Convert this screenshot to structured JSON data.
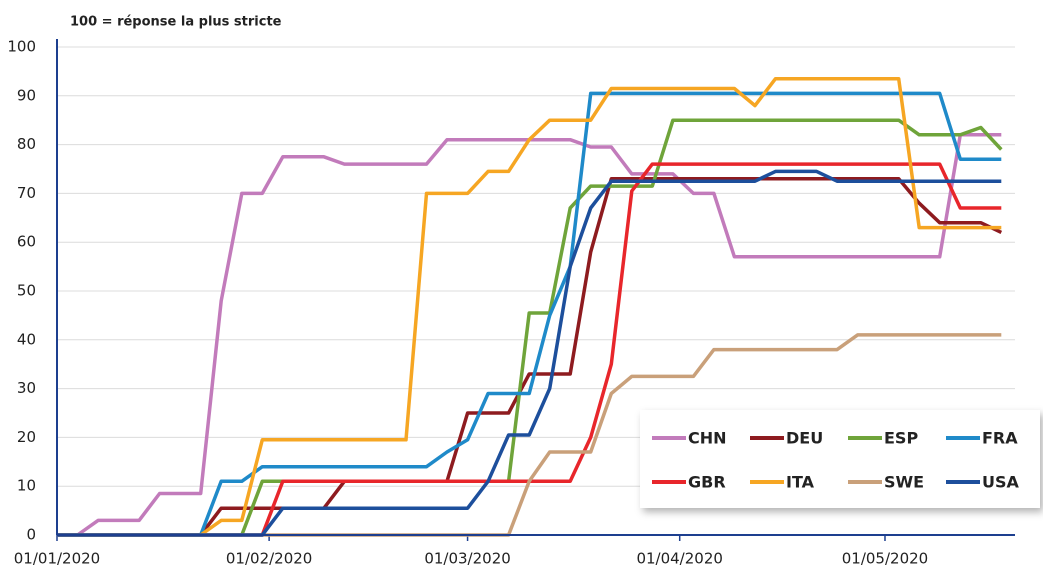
{
  "chart_data": {
    "type": "line",
    "title": "100 = réponse la plus stricte",
    "x": [
      "2020-01-01",
      "2020-01-04",
      "2020-01-07",
      "2020-01-10",
      "2020-01-13",
      "2020-01-16",
      "2020-01-19",
      "2020-01-22",
      "2020-01-25",
      "2020-01-28",
      "2020-01-31",
      "2020-02-03",
      "2020-02-06",
      "2020-02-09",
      "2020-02-12",
      "2020-02-15",
      "2020-02-18",
      "2020-02-21",
      "2020-02-24",
      "2020-02-27",
      "2020-03-01",
      "2020-03-04",
      "2020-03-07",
      "2020-03-10",
      "2020-03-13",
      "2020-03-16",
      "2020-03-19",
      "2020-03-22",
      "2020-03-25",
      "2020-03-28",
      "2020-03-31",
      "2020-04-03",
      "2020-04-06",
      "2020-04-09",
      "2020-04-12",
      "2020-04-15",
      "2020-04-18",
      "2020-04-21",
      "2020-04-24",
      "2020-04-27",
      "2020-04-30",
      "2020-05-03",
      "2020-05-06",
      "2020-05-09",
      "2020-05-12",
      "2020-05-15",
      "2020-05-18"
    ],
    "series": [
      {
        "name": "CHN",
        "color": "#c27bbb",
        "values": [
          0,
          0,
          3,
          3,
          3,
          8.5,
          8.5,
          8.5,
          48,
          70,
          70,
          77.5,
          77.5,
          77.5,
          76,
          76,
          76,
          76,
          76,
          81,
          81,
          81,
          81,
          81,
          81,
          81,
          79.5,
          79.5,
          74,
          74,
          74,
          70,
          70,
          57,
          57,
          57,
          57,
          57,
          57,
          57,
          57,
          57,
          57,
          57,
          82,
          82,
          82
        ]
      },
      {
        "name": "DEU",
        "color": "#8e1b1f",
        "values": [
          0,
          0,
          0,
          0,
          0,
          0,
          0,
          0,
          5.5,
          5.5,
          5.5,
          5.5,
          5.5,
          5.5,
          11,
          11,
          11,
          11,
          11,
          11,
          25,
          25,
          25,
          33,
          33,
          33,
          58,
          73,
          73,
          73,
          73,
          73,
          73,
          73,
          73,
          73,
          73,
          73,
          73,
          73,
          73,
          73,
          68,
          64,
          64,
          64,
          62
        ]
      },
      {
        "name": "ESP",
        "color": "#6fa43a",
        "values": [
          0,
          0,
          0,
          0,
          0,
          0,
          0,
          0,
          0,
          0,
          11,
          11,
          11,
          11,
          11,
          11,
          11,
          11,
          11,
          11,
          11,
          11,
          11,
          45.5,
          45.5,
          67,
          71.5,
          71.5,
          71.5,
          71.5,
          85,
          85,
          85,
          85,
          85,
          85,
          85,
          85,
          85,
          85,
          85,
          85,
          82,
          82,
          82,
          83.5,
          79
        ]
      },
      {
        "name": "FRA",
        "color": "#1f8ac9",
        "values": [
          0,
          0,
          0,
          0,
          0,
          0,
          0,
          0,
          11,
          11,
          14,
          14,
          14,
          14,
          14,
          14,
          14,
          14,
          14,
          17,
          19.5,
          29,
          29,
          29,
          45,
          55,
          90.5,
          90.5,
          90.5,
          90.5,
          90.5,
          90.5,
          90.5,
          90.5,
          90.5,
          90.5,
          90.5,
          90.5,
          90.5,
          90.5,
          90.5,
          90.5,
          90.5,
          90.5,
          77,
          77,
          77
        ]
      },
      {
        "name": "GBR",
        "color": "#e8262b",
        "values": [
          0,
          0,
          0,
          0,
          0,
          0,
          0,
          0,
          0,
          0,
          0,
          11,
          11,
          11,
          11,
          11,
          11,
          11,
          11,
          11,
          11,
          11,
          11,
          11,
          11,
          11,
          20,
          35,
          70.5,
          76,
          76,
          76,
          76,
          76,
          76,
          76,
          76,
          76,
          76,
          76,
          76,
          76,
          76,
          76,
          67,
          67,
          67
        ]
      },
      {
        "name": "ITA",
        "color": "#f6a623",
        "values": [
          0,
          0,
          0,
          0,
          0,
          0,
          0,
          0,
          3,
          3,
          19.5,
          19.5,
          19.5,
          19.5,
          19.5,
          19.5,
          19.5,
          19.5,
          70,
          70,
          70,
          74.5,
          74.5,
          81,
          85,
          85,
          85,
          91.5,
          91.5,
          91.5,
          91.5,
          91.5,
          91.5,
          91.5,
          88,
          93.5,
          93.5,
          93.5,
          93.5,
          93.5,
          93.5,
          93.5,
          63,
          63,
          63,
          63,
          63
        ]
      },
      {
        "name": "SWE",
        "color": "#c9a07a",
        "values": [
          0,
          0,
          0,
          0,
          0,
          0,
          0,
          0,
          0,
          0,
          0,
          0,
          0,
          0,
          0,
          0,
          0,
          0,
          0,
          0,
          0,
          0,
          0,
          11,
          17,
          17,
          17,
          29,
          32.5,
          32.5,
          32.5,
          32.5,
          38,
          38,
          38,
          38,
          38,
          38,
          38,
          41,
          41,
          41,
          41,
          41,
          41,
          41,
          41
        ]
      },
      {
        "name": "USA",
        "color": "#1d4f9c",
        "values": [
          0,
          0,
          0,
          0,
          0,
          0,
          0,
          0,
          0,
          0,
          0,
          5.5,
          5.5,
          5.5,
          5.5,
          5.5,
          5.5,
          5.5,
          5.5,
          5.5,
          5.5,
          11,
          20.5,
          20.5,
          30,
          55,
          67,
          72.5,
          72.5,
          72.5,
          72.5,
          72.5,
          72.5,
          72.5,
          72.5,
          74.5,
          74.5,
          74.5,
          72.5,
          72.5,
          72.5,
          72.5,
          72.5,
          72.5,
          72.5,
          72.5,
          72.5
        ]
      }
    ],
    "xlim": [
      "2020-01-01",
      "2020-05-20"
    ],
    "xticks": [
      {
        "value": "2020-01-01",
        "label": "01/01/2020"
      },
      {
        "value": "2020-02-01",
        "label": "01/02/2020"
      },
      {
        "value": "2020-03-01",
        "label": "01/03/2020"
      },
      {
        "value": "2020-04-01",
        "label": "01/04/2020"
      },
      {
        "value": "2020-05-01",
        "label": "01/05/2020"
      }
    ],
    "ylim": [
      0,
      100
    ],
    "yticks": [
      0,
      10,
      20,
      30,
      40,
      50,
      60,
      70,
      80,
      90,
      100
    ],
    "grid": true,
    "legend": "lower right"
  }
}
